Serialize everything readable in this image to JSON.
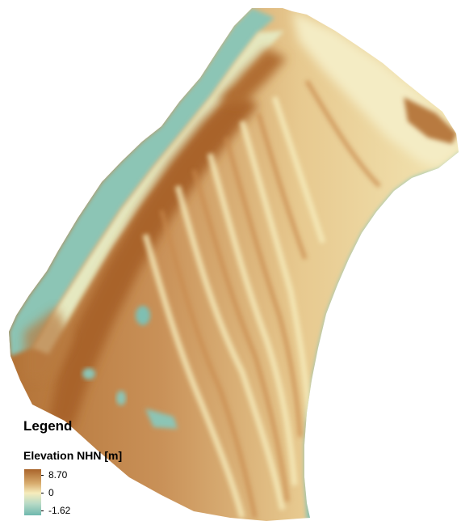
{
  "map": {
    "colors": {
      "low": "#6fb8ae",
      "mid": "#f6ecbc",
      "high": "#a9642a",
      "edge": "#dfe9cf"
    }
  },
  "legend": {
    "title": "Legend",
    "subtitle": "Elevation NHN [m]",
    "max_label": "8.70",
    "mid_label": "0",
    "min_label": "-1.62",
    "max_value": 8.7,
    "mid_value": 0,
    "min_value": -1.62
  }
}
